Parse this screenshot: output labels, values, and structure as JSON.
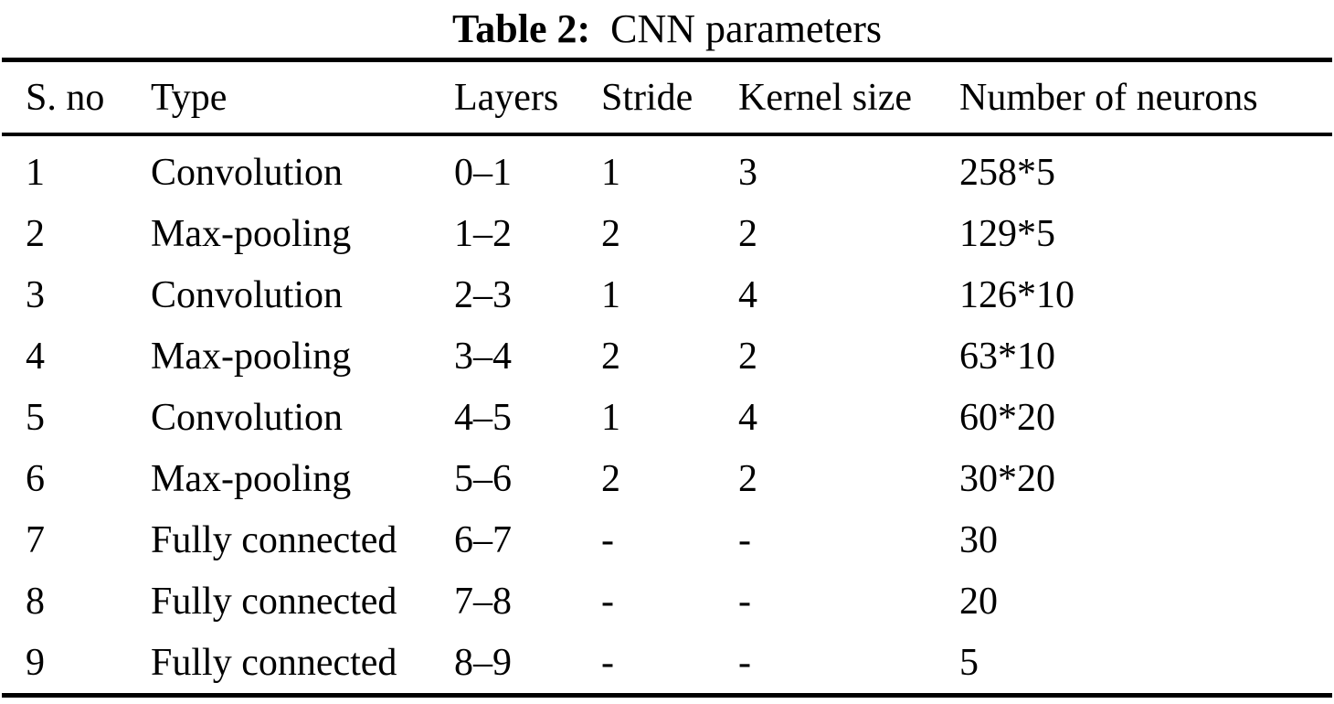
{
  "caption": {
    "label": "Table 2:",
    "text": "CNN parameters"
  },
  "table": {
    "headers": [
      "S. no",
      "Type",
      "Layers",
      "Stride",
      "Kernel size",
      "Number of neurons"
    ],
    "rows": [
      [
        "1",
        "Convolution",
        "0–1",
        "1",
        "3",
        "258*5"
      ],
      [
        "2",
        "Max-pooling",
        "1–2",
        "2",
        "2",
        "129*5"
      ],
      [
        "3",
        "Convolution",
        "2–3",
        "1",
        "4",
        "126*10"
      ],
      [
        "4",
        "Max-pooling",
        "3–4",
        "2",
        "2",
        "63*10"
      ],
      [
        "5",
        "Convolution",
        "4–5",
        "1",
        "4",
        "60*20"
      ],
      [
        "6",
        "Max-pooling",
        "5–6",
        "2",
        "2",
        "30*20"
      ],
      [
        "7",
        "Fully connected",
        "6–7",
        "-",
        "-",
        "30"
      ],
      [
        "8",
        "Fully connected",
        "7–8",
        "-",
        "-",
        "20"
      ],
      [
        "9",
        "Fully connected",
        "8–9",
        "-",
        "-",
        "5"
      ]
    ]
  },
  "colors": {
    "text": "#000000",
    "background": "#ffffff",
    "rule": "#000000"
  }
}
